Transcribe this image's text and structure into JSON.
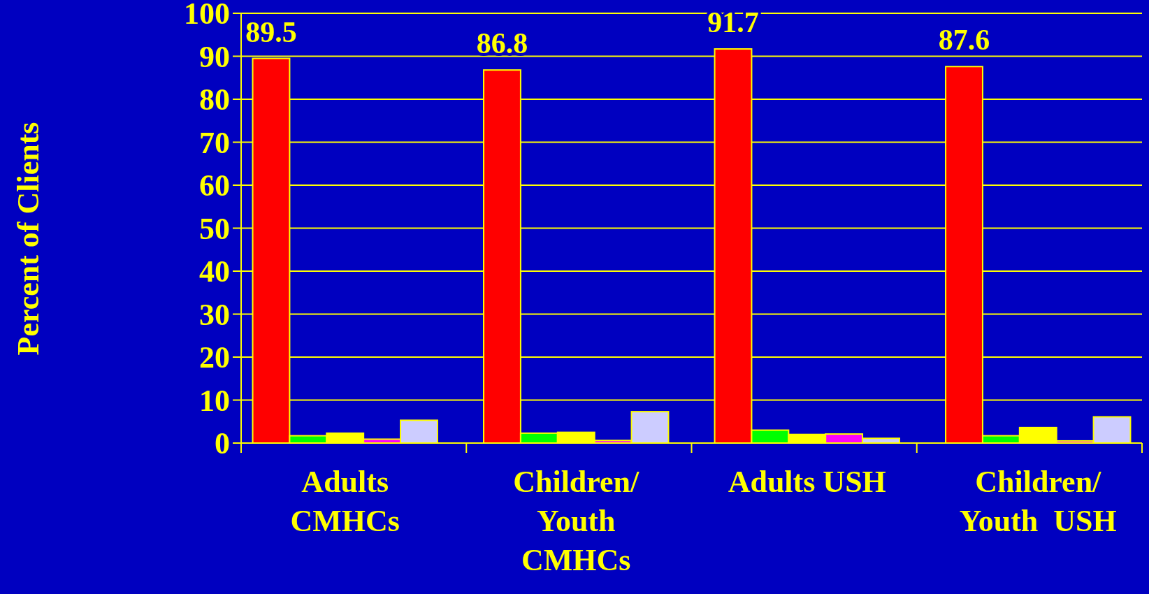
{
  "chart_data": {
    "type": "bar",
    "ylabel": "Percent of Clients",
    "categories": [
      "Adults\nCMHCs",
      "Children/\nYouth\nCMHCs",
      "Adults USH",
      "Children/\nYouth  USH"
    ],
    "series": [
      {
        "color": "#ff0000",
        "values": [
          89.5,
          86.8,
          91.7,
          87.6
        ],
        "value_labels": [
          "89.5",
          "86.8",
          "91.7",
          "87.6"
        ]
      },
      {
        "color": "#00ff00",
        "values": [
          1.7,
          2.3,
          3.0,
          1.7
        ]
      },
      {
        "color": "#ffff00",
        "values": [
          2.3,
          2.5,
          2.0,
          3.6
        ]
      },
      {
        "color": "#ff00ff",
        "values": [
          0.9,
          0.6,
          2.1,
          0.5
        ]
      },
      {
        "color": "#ccccff",
        "values": [
          5.3,
          7.3,
          1.1,
          6.1
        ]
      }
    ],
    "ylim": [
      0,
      100
    ],
    "yticks": [
      0,
      10,
      20,
      30,
      40,
      50,
      60,
      70,
      80,
      90,
      100
    ],
    "grid": "y"
  }
}
